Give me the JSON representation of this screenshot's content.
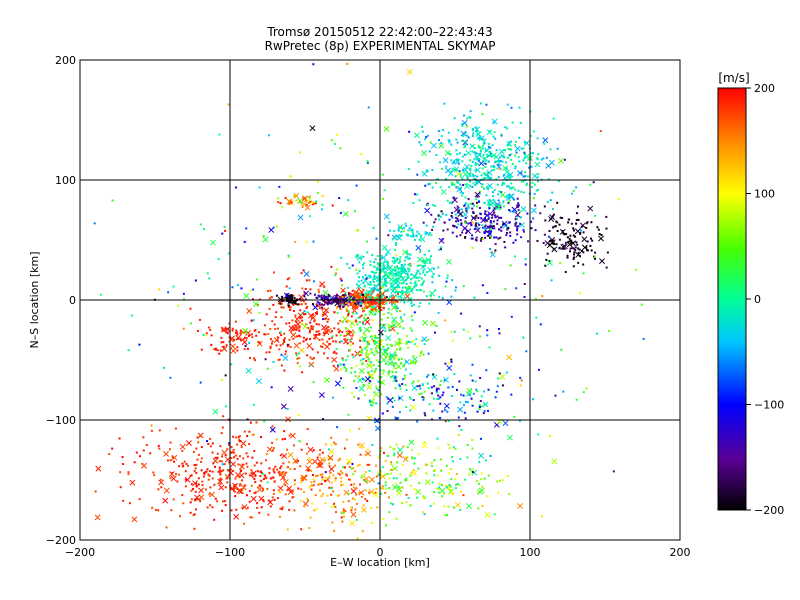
{
  "chart_data": {
    "type": "scatter",
    "title": "Tromsø 20150512 22:42:00–22:43:43",
    "subtitle": "RwPretec (8p) EXPERIMENTAL SKYMAP",
    "xlabel": "E–W location [km]",
    "ylabel": "N–S location [km]",
    "xlim": [
      -200,
      200
    ],
    "ylim": [
      -200,
      200
    ],
    "x_ticks": [
      -200,
      -100,
      0,
      100,
      200
    ],
    "y_ticks": [
      -200,
      -100,
      0,
      100,
      200
    ],
    "x_tick_labels": [
      "−200",
      "−100",
      "0",
      "100",
      "200"
    ],
    "y_tick_labels": [
      "−200",
      "−100",
      "0",
      "100",
      "200"
    ],
    "grid": true,
    "markers": [
      "dot",
      "x"
    ],
    "colorbar": {
      "label": "[m/s]",
      "range": [
        -200,
        200
      ],
      "ticks": [
        -200,
        -100,
        0,
        100,
        200
      ],
      "tick_labels": [
        "−200",
        "−100",
        "0",
        "100",
        "200"
      ],
      "colormap": "rainbow (black-purple-blue-cyan-green-yellow-red)"
    },
    "clusters": [
      {
        "x": -100,
        "y": -145,
        "sx": 45,
        "sy": 25,
        "v": 185,
        "vs": 15,
        "n": 420
      },
      {
        "x": -30,
        "y": -150,
        "sx": 25,
        "sy": 25,
        "v": 150,
        "vs": 40,
        "n": 180
      },
      {
        "x": 30,
        "y": -150,
        "sx": 40,
        "sy": 25,
        "v": 60,
        "vs": 60,
        "n": 200
      },
      {
        "x": -45,
        "y": -20,
        "sx": 30,
        "sy": 25,
        "v": 185,
        "vs": 15,
        "n": 300
      },
      {
        "x": -100,
        "y": -30,
        "sx": 15,
        "sy": 10,
        "v": 190,
        "vs": 10,
        "n": 70
      },
      {
        "x": -10,
        "y": 0,
        "sx": 15,
        "sy": 5,
        "v": 175,
        "vs": 20,
        "n": 250
      },
      {
        "x": -60,
        "y": 0,
        "sx": 5,
        "sy": 3,
        "v": -195,
        "vs": 5,
        "n": 50
      },
      {
        "x": -30,
        "y": 0,
        "sx": 15,
        "sy": 4,
        "v": -150,
        "vs": 30,
        "n": 100
      },
      {
        "x": 0,
        "y": -40,
        "sx": 20,
        "sy": 30,
        "v": 40,
        "vs": 40,
        "n": 300
      },
      {
        "x": 10,
        "y": 20,
        "sx": 20,
        "sy": 15,
        "v": -10,
        "vs": 20,
        "n": 350
      },
      {
        "x": 20,
        "y": 55,
        "sx": 12,
        "sy": 6,
        "v": -25,
        "vs": 15,
        "n": 50
      },
      {
        "x": 70,
        "y": 110,
        "sx": 30,
        "sy": 30,
        "v": -20,
        "vs": 35,
        "n": 500
      },
      {
        "x": 70,
        "y": 65,
        "sx": 25,
        "sy": 15,
        "v": -140,
        "vs": 40,
        "n": 200
      },
      {
        "x": 130,
        "y": 50,
        "sx": 15,
        "sy": 15,
        "v": -190,
        "vs": 15,
        "n": 130
      },
      {
        "x": -50,
        "y": 82,
        "sx": 12,
        "sy": 4,
        "v": 150,
        "vs": 60,
        "n": 40
      },
      {
        "x": 40,
        "y": -80,
        "sx": 40,
        "sy": 20,
        "v": -60,
        "vs": 80,
        "n": 150
      },
      {
        "x": 0,
        "y": 0,
        "sx": 110,
        "sy": 110,
        "v": 0,
        "vs": 120,
        "n": 400
      }
    ]
  }
}
